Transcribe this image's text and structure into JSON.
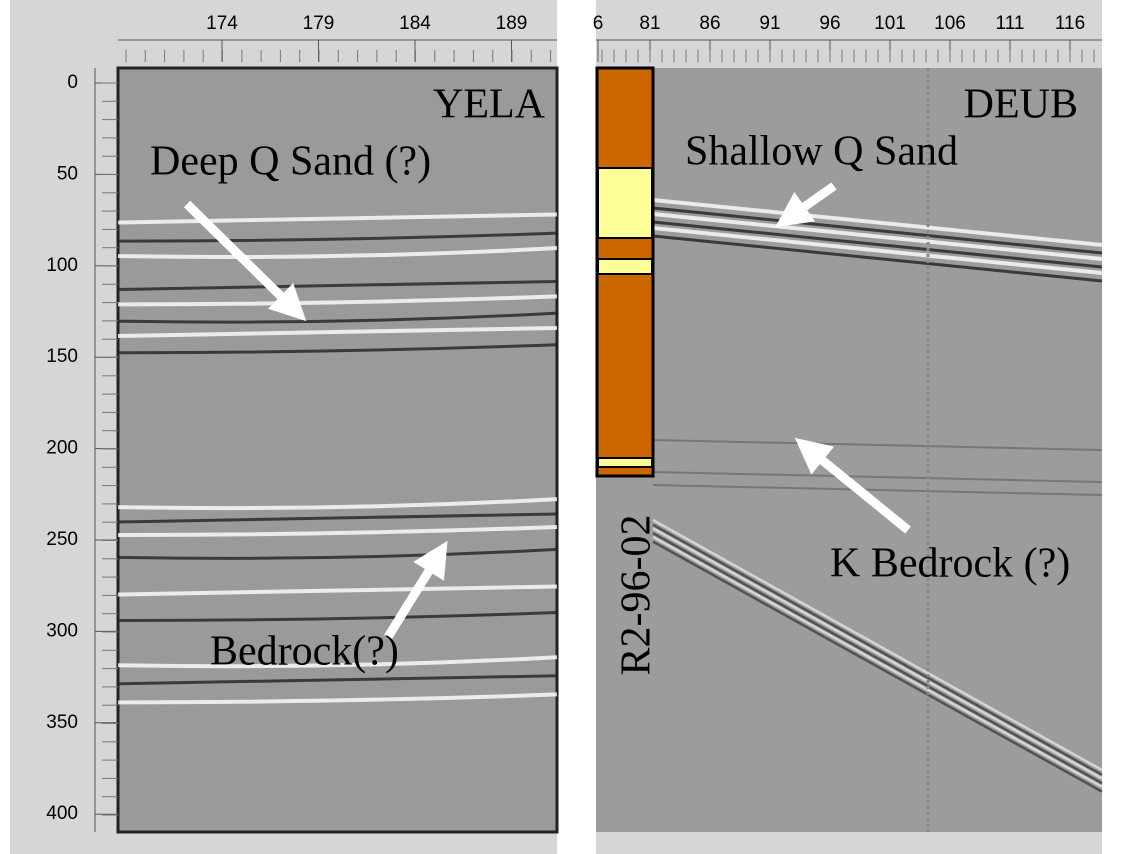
{
  "left_panel": {
    "x_ticks": [
      174,
      179,
      184,
      189
    ],
    "y_ticks": [
      0,
      50,
      100,
      150,
      200,
      250,
      300,
      350,
      400
    ],
    "station": "YELA",
    "annotations": [
      "Deep Q Sand (?)",
      "Bedrock(?)"
    ]
  },
  "right_panel": {
    "x_ticks": [
      6,
      81,
      86,
      91,
      96,
      101,
      106,
      111,
      116
    ],
    "station": "DEUB",
    "well": "R2-96-02",
    "annotations": [
      "Shallow Q Sand",
      "K Bedrock (?)"
    ]
  }
}
